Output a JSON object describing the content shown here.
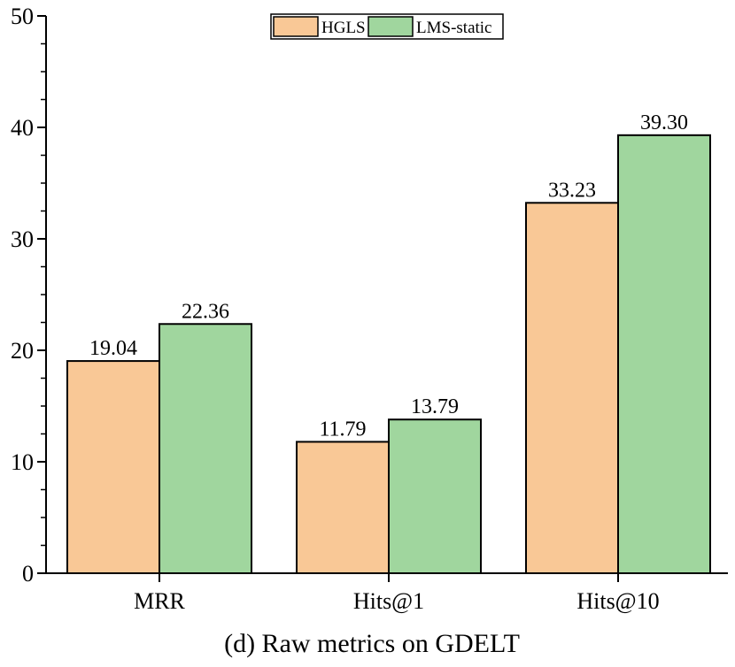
{
  "chart_data": {
    "type": "bar",
    "caption": "(d) Raw metrics on GDELT",
    "categories": [
      "MRR",
      "Hits@1",
      "Hits@10"
    ],
    "series": [
      {
        "name": "HGLS",
        "values": [
          19.04,
          11.79,
          33.23
        ],
        "labels": [
          "19.04",
          "11.79",
          "33.23"
        ],
        "color": "#F9C896"
      },
      {
        "name": "LMS-static",
        "values": [
          22.36,
          13.79,
          39.3
        ],
        "labels": [
          "22.36",
          "13.79",
          "39.30"
        ],
        "color": "#A0D69E"
      }
    ],
    "ylim": [
      0,
      50
    ],
    "yticks": [
      0,
      10,
      20,
      30,
      40,
      50
    ],
    "ytick_labels": [
      "0",
      "10",
      "20",
      "30",
      "40",
      "50"
    ],
    "grid": false,
    "legend_position": "top-center"
  }
}
